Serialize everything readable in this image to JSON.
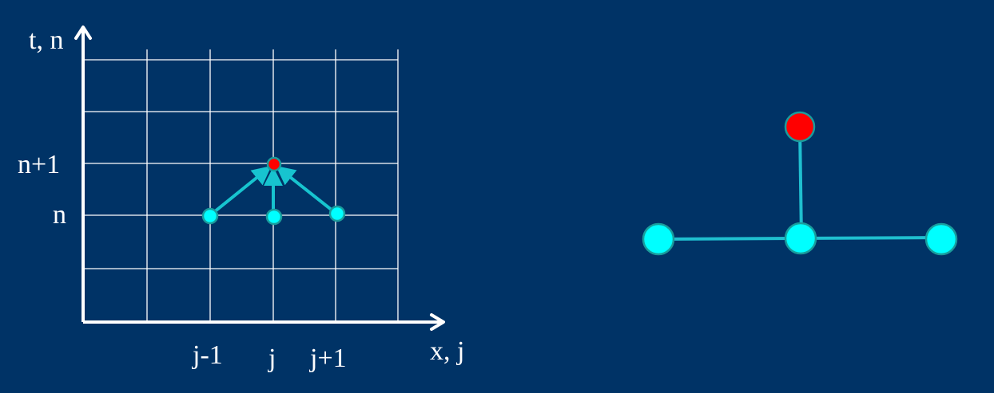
{
  "colors": {
    "background": "#003366",
    "grid_line": "#ffffff",
    "node_fill": "#00ffff",
    "node_stroke": "#1a9c9c",
    "target_fill": "#ff0000",
    "target_stroke": "#1a9c9c",
    "arrow": "#17c4cf",
    "stencil_line": "#1fbfcf"
  },
  "grid_diagram": {
    "y_axis_label": "t, n",
    "x_axis_label": "x, j",
    "row_labels": {
      "n_plus_1": "n+1",
      "n": "n"
    },
    "column_labels": {
      "j_minus_1": "j-1",
      "j": "j",
      "j_plus_1": "j+1"
    }
  },
  "stencil_diagram": {
    "target_node": "red",
    "base_nodes": 3
  }
}
